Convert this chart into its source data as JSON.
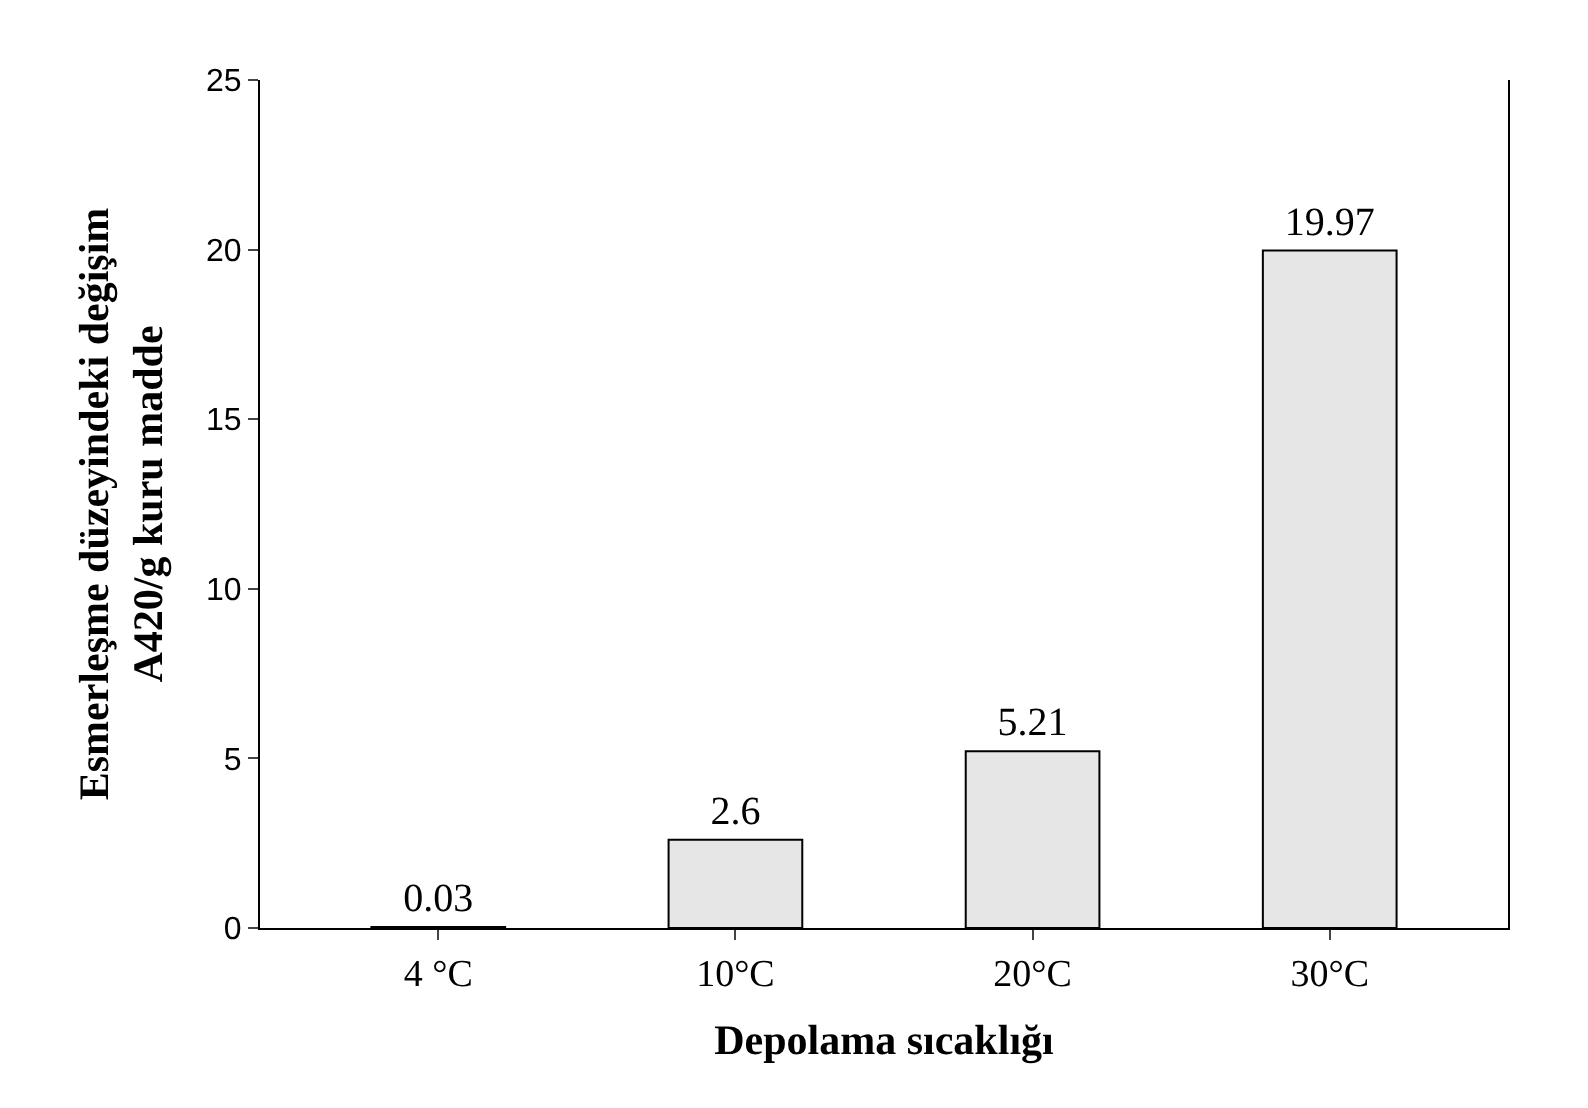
{
  "chart_data": {
    "type": "bar",
    "xlabel": "Depolama sıcaklığı",
    "ylabel": "Esmerleşme düzeyindeki değişim\nA420/g kuru madde",
    "categories": [
      "4 °C",
      "10°C",
      "20°C",
      "30°C"
    ],
    "values": [
      0.03,
      2.6,
      5.21,
      19.97
    ],
    "color": "#e6e6e6",
    "ylim": [
      0,
      25
    ],
    "yticks": [
      0,
      5,
      10,
      15,
      20,
      25
    ],
    "data_labels": true
  }
}
